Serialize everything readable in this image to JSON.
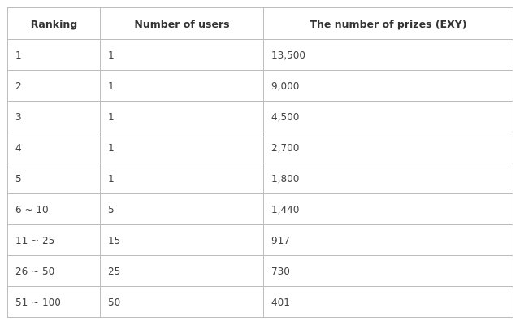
{
  "table": {
    "headers": [
      "Ranking",
      "Number of users",
      "The number of prizes (EXY)"
    ],
    "rows": [
      [
        "1",
        "1",
        "13,500"
      ],
      [
        "2",
        "1",
        "9,000"
      ],
      [
        "3",
        "1",
        "4,500"
      ],
      [
        "4",
        "1",
        "2,700"
      ],
      [
        "5",
        "1",
        "1,800"
      ],
      [
        "6 ~ 10",
        "5",
        "1,440"
      ],
      [
        "11 ~ 25",
        "15",
        "917"
      ],
      [
        "26 ~ 50",
        "25",
        "730"
      ],
      [
        "51 ~ 100",
        "50",
        "401"
      ]
    ]
  }
}
